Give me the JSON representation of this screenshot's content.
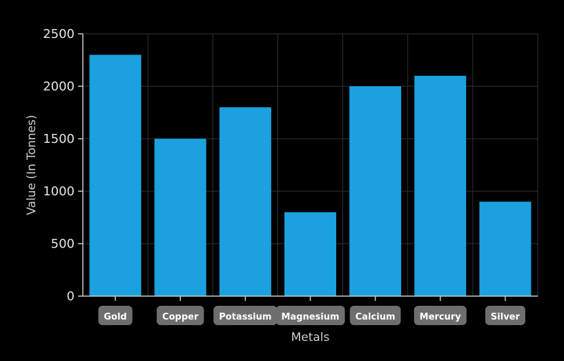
{
  "chart_data": {
    "type": "bar",
    "categories": [
      "Gold",
      "Copper",
      "Potassium",
      "Magnesium",
      "Calcium",
      "Mercury",
      "Silver"
    ],
    "series": [
      {
        "values": [
          2300,
          1500,
          1800,
          800,
          2000,
          2100,
          900
        ]
      }
    ],
    "xlabel": "Metals",
    "ylabel": "Value (In Tonnes)",
    "ylim": [
      0,
      2500
    ],
    "yticks": [
      0,
      500,
      1000,
      1500,
      2000,
      2500
    ],
    "grid": true,
    "colors": {
      "bar": "#1ca1e0",
      "background": "#000000",
      "grid": "#333333",
      "axis": "#cccccc",
      "label_pill": "#6e6e6e"
    }
  }
}
